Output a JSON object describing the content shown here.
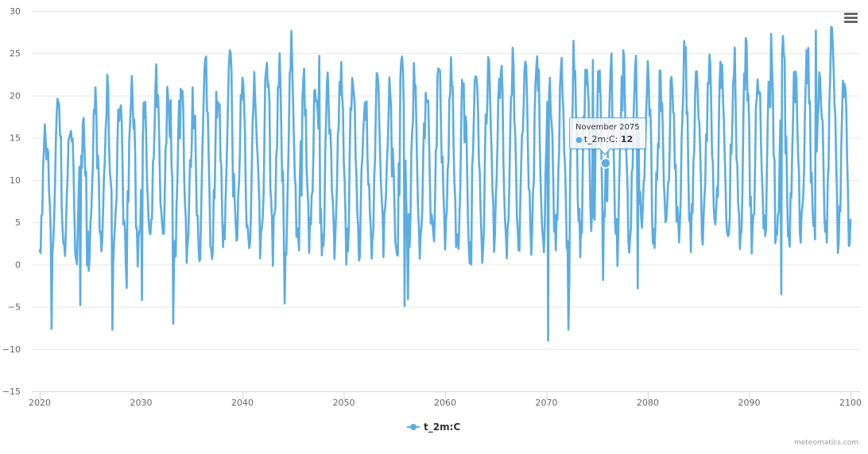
{
  "chart_data": {
    "type": "line",
    "title": "",
    "xlabel": "",
    "ylabel": "",
    "x_range": [
      2020,
      2100
    ],
    "ylim": [
      -15,
      30
    ],
    "y_ticks": [
      -15,
      -10,
      -5,
      0,
      5,
      10,
      15,
      20,
      25,
      30
    ],
    "x_ticks": [
      2020,
      2030,
      2040,
      2050,
      2060,
      2070,
      2080,
      2090,
      2100
    ],
    "grid": true,
    "legend_position": "bottom-center",
    "series": [
      {
        "name": "t_2m:C",
        "color": "#5aade3",
        "frequency": "monthly",
        "description": "Monthly 2m temperature, seasonal cycle roughly 0 to 22 C with slight warming trend",
        "approx_seasonal_max": [
          15.7,
          19.8,
          17.0,
          18.3,
          18.7,
          19.5,
          18.8,
          20.7,
          17.8,
          21.0,
          21.3,
          22.5,
          18.8,
          23.2,
          21.0,
          23.5,
          21.8,
          21.0,
          23.7,
          22.5,
          24.8,
          22.0,
          21.8,
          22.3,
          21.8,
          23.7,
          20.5,
          21.0,
          22.5,
          23.2,
          22.0,
          21.5,
          23.0,
          22.5,
          22.0,
          21.3,
          22.5,
          24.0,
          23.2,
          22.5,
          24.3,
          22.0,
          22.3,
          24.0,
          23.8,
          21.5,
          22.5,
          24.8,
          23.2,
          22.7,
          22.0,
          22.5,
          24.8,
          22.0,
          23.0,
          23.2,
          22.0,
          24.8,
          22.5,
          25.0,
          27.3,
          22.5,
          24.0,
          23.0,
          27.8,
          22.8
        ],
        "approx_extreme_minima": [
          {
            "x": 2021.2,
            "y": -7.6
          },
          {
            "x": 2024.0,
            "y": -4.8
          },
          {
            "x": 2027.2,
            "y": -7.7
          },
          {
            "x": 2030.1,
            "y": -4.2
          },
          {
            "x": 2033.2,
            "y": -7.0
          },
          {
            "x": 2044.2,
            "y": -4.6
          },
          {
            "x": 2056.0,
            "y": -4.9
          },
          {
            "x": 2070.2,
            "y": -9.0
          },
          {
            "x": 2072.2,
            "y": -7.7
          },
          {
            "x": 2079.0,
            "y": -2.8
          },
          {
            "x": 2093.2,
            "y": -3.5
          }
        ],
        "approx_extreme_maxima": [
          {
            "x": 2047.6,
            "y": 24.7
          },
          {
            "x": 2074.6,
            "y": 24.2
          },
          {
            "x": 2088.6,
            "y": 25.7
          },
          {
            "x": 2092.2,
            "y": 27.3
          },
          {
            "x": 2096.6,
            "y": 27.7
          }
        ],
        "start_value": {
          "x": 2020.0,
          "y": 1.7
        },
        "end_value": {
          "x": 2100.0,
          "y": 5.3
        },
        "highlighted_point": {
          "x_label": "November 2075",
          "x": 2075.83,
          "y": 12
        }
      }
    ]
  },
  "tooltip": {
    "header": "November 2075",
    "series_label": "t_2m:C: ",
    "value": "12",
    "marker": "●"
  },
  "legend": {
    "items": [
      {
        "label": "t_2m:C",
        "color": "#5aade3"
      }
    ]
  },
  "credits": {
    "text": "meteomatics.com"
  },
  "menu": {
    "icon": "hamburger-menu-icon"
  },
  "colors": {
    "series": "#5aade3",
    "grid": "#e6e6e6",
    "axis": "#ccd6eb",
    "label": "#666666"
  }
}
